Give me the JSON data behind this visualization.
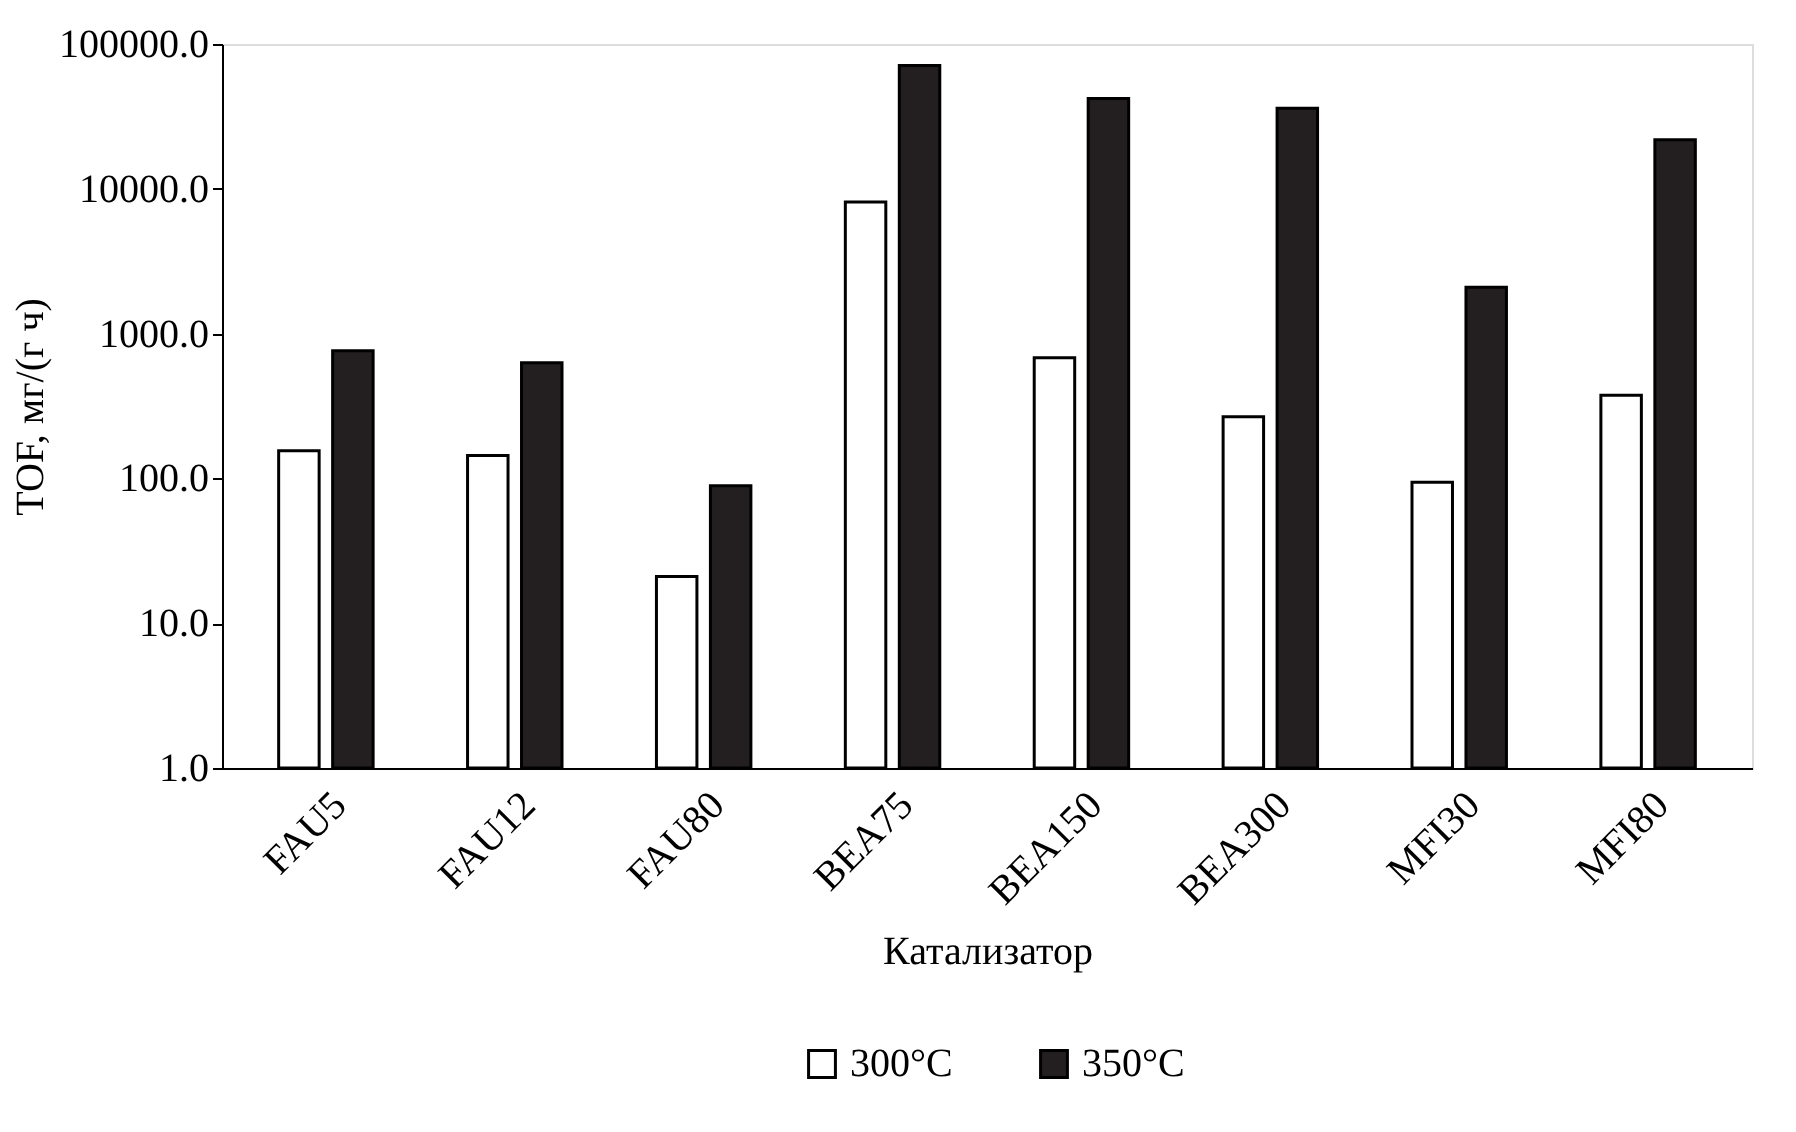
{
  "chart_data": {
    "type": "bar",
    "xlabel": "Катализатор",
    "ylabel": "TOF, мг/(г ч)",
    "categories": [
      "FAU5",
      "FAU12",
      "FAU80",
      "BEA75",
      "BEA150",
      "BEA300",
      "MFI30",
      "MFI80"
    ],
    "series": [
      {
        "name": "300°C",
        "color": "#ffffff",
        "values": [
          155,
          144,
          21,
          8100,
          680,
          267,
          94,
          375
        ]
      },
      {
        "name": "350°C",
        "color": "#231f20",
        "values": [
          760,
          630,
          89,
          71000,
          42000,
          36000,
          2090,
          21800
        ]
      }
    ],
    "log": true,
    "ylim": [
      1,
      100000
    ],
    "yticks": [
      {
        "value": 1,
        "label": "1.0"
      },
      {
        "value": 10,
        "label": "10.0"
      },
      {
        "value": 100,
        "label": "100.0"
      },
      {
        "value": 1000,
        "label": "1000.0"
      },
      {
        "value": 10000,
        "label": "10000.0"
      },
      {
        "value": 100000,
        "label": "100000.0"
      }
    ],
    "grid": false,
    "legend": "bottom"
  }
}
